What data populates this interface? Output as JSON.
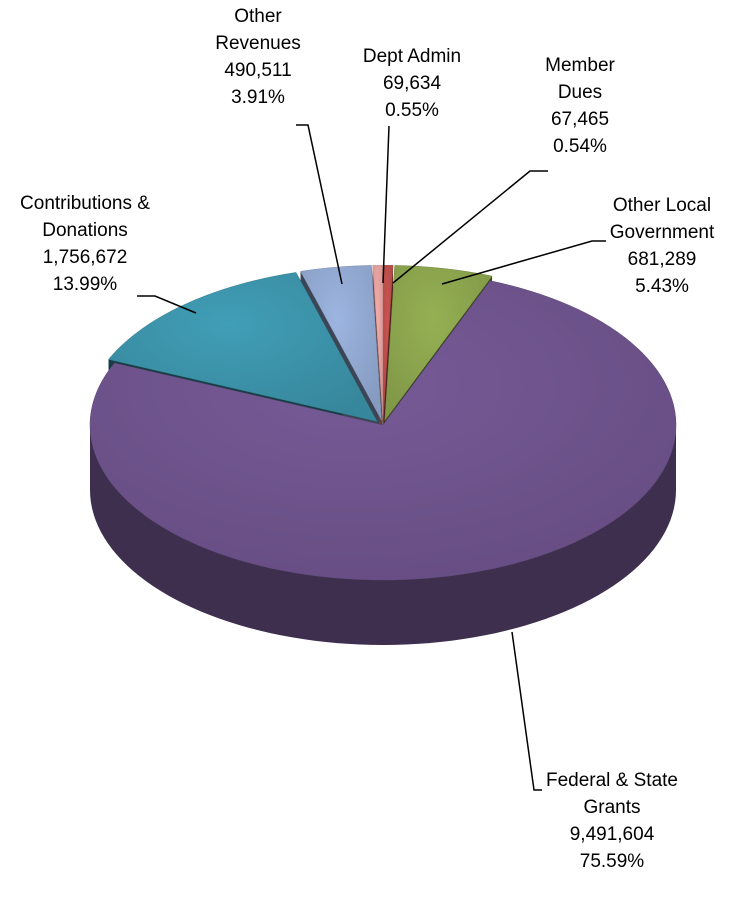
{
  "chart_data": {
    "type": "pie",
    "categories": [
      "Member Dues",
      "Other Local Government",
      "Federal & State Grants",
      "Contributions & Donations",
      "Other Revenues",
      "Dept Admin"
    ],
    "values": [
      67465,
      681289,
      9491604,
      1756672,
      490511,
      69634
    ],
    "value_labels": [
      "67,465",
      "681,289",
      "9,491,604",
      "1,756,672",
      "490,511",
      "69,634"
    ],
    "percentages": [
      0.54,
      5.43,
      75.59,
      13.99,
      3.91,
      0.55
    ],
    "percentage_labels": [
      "0.54%",
      "5.43%",
      "75.59%",
      "13.99%",
      "3.91%",
      "0.55%"
    ],
    "colors": [
      "#c0504d",
      "#8ea84f",
      "#715690",
      "#3d96ad",
      "#95acd5",
      "#e8a4a2"
    ]
  }
}
